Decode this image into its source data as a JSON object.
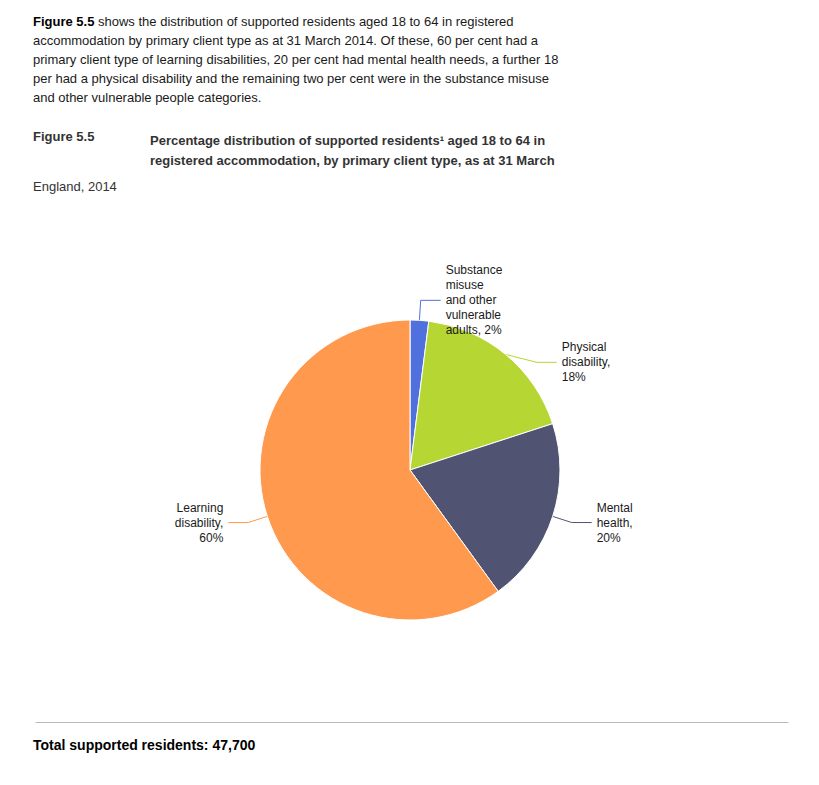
{
  "chart_data": {
    "type": "pie",
    "body_bold": "Figure 5.5",
    "body_rest": " shows the distribution of supported residents aged 18 to 64 in registered\naccommodation by primary client type as at 31 March 2014. Of these, 60 per cent had a\nprimary client type of learning disabilities, 20 per cent had mental health needs, a further 18\nper had a physical disability and the remaining two per cent were in the substance misuse\nand other vulnerable people categories.",
    "title_label": "Figure 5.5",
    "title": "Percentage distribution of supported residents¹ aged 18 to 64 in\nregistered accommodation, by primary client type, as at 31 March",
    "subtitle": "England, 2014",
    "footer": "Total supported residents: 47,700",
    "categories": [
      "Substance\nmisuse\nand other\nvulnerable\nadults, 2%",
      "Physical\ndisability,\n18%",
      "Mental\nhealth,\n20%",
      "Learning\ndisability,\n60%"
    ],
    "values": [
      2,
      18,
      20,
      60
    ]
  }
}
